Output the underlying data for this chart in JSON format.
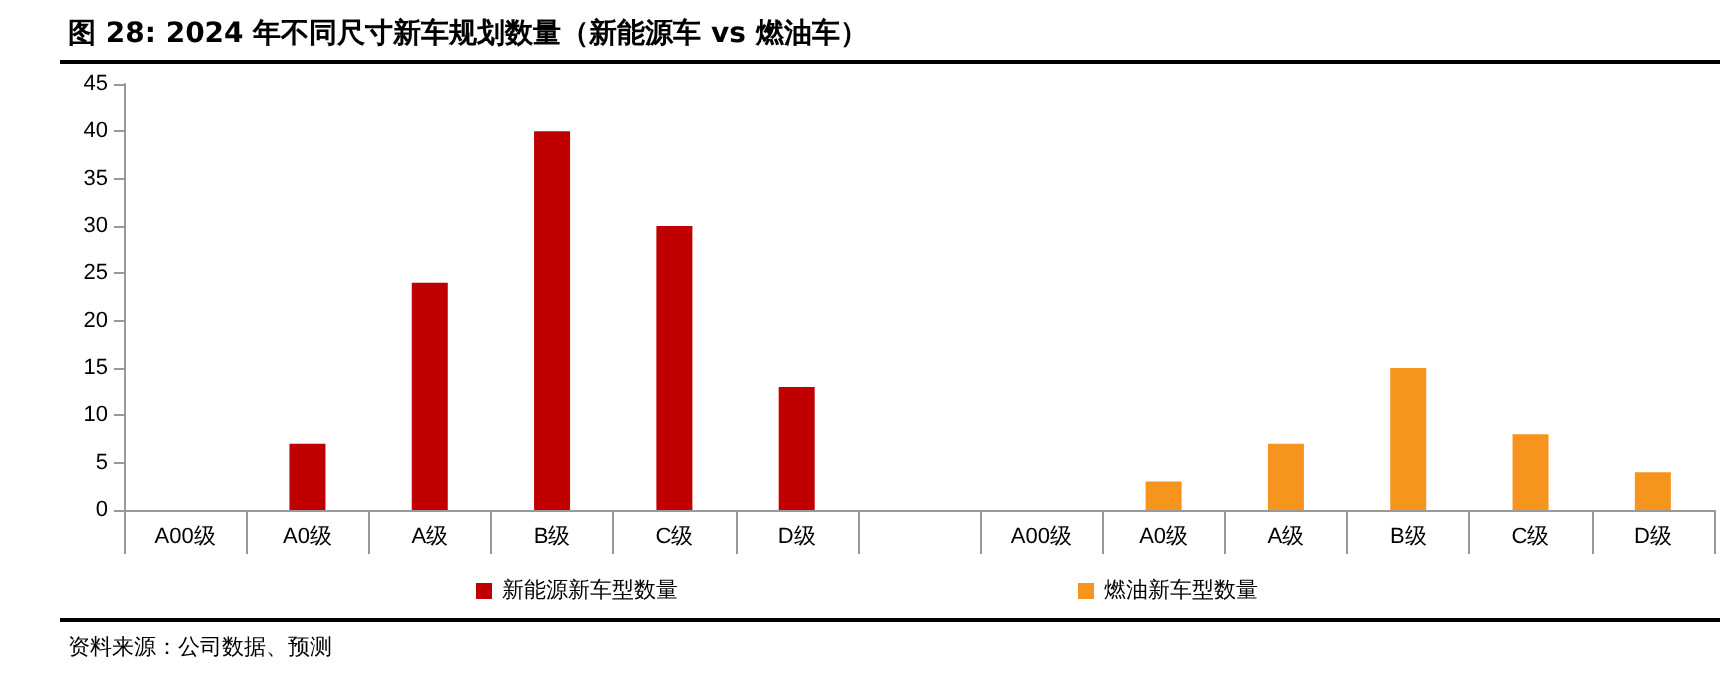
{
  "chart_data": {
    "type": "bar",
    "title": "图 28: 2024 年不同尺寸新车规划数量（新能源车 vs 燃油车）",
    "categories": [
      "A00级",
      "A0级",
      "A级",
      "B级",
      "C级",
      "D级",
      null,
      "A00级",
      "A0级",
      "A级",
      "B级",
      "C级",
      "D级"
    ],
    "series": [
      {
        "name": "新能源新车型数量",
        "color": "#c00000",
        "values": [
          0,
          7,
          24,
          40,
          30,
          13,
          null,
          null,
          null,
          null,
          null,
          null,
          null
        ]
      },
      {
        "name": "燃油新车型数量",
        "color": "#f7941d",
        "values": [
          null,
          null,
          null,
          null,
          null,
          null,
          null,
          0,
          3,
          7,
          15,
          8,
          4
        ]
      }
    ],
    "ylim": [
      0,
      45
    ],
    "yticks": [
      0,
      5,
      10,
      15,
      20,
      25,
      30,
      35,
      40,
      45
    ],
    "grid": false,
    "legend": "bottom",
    "annotations": [
      "资料来源：公司数据、预测"
    ]
  }
}
